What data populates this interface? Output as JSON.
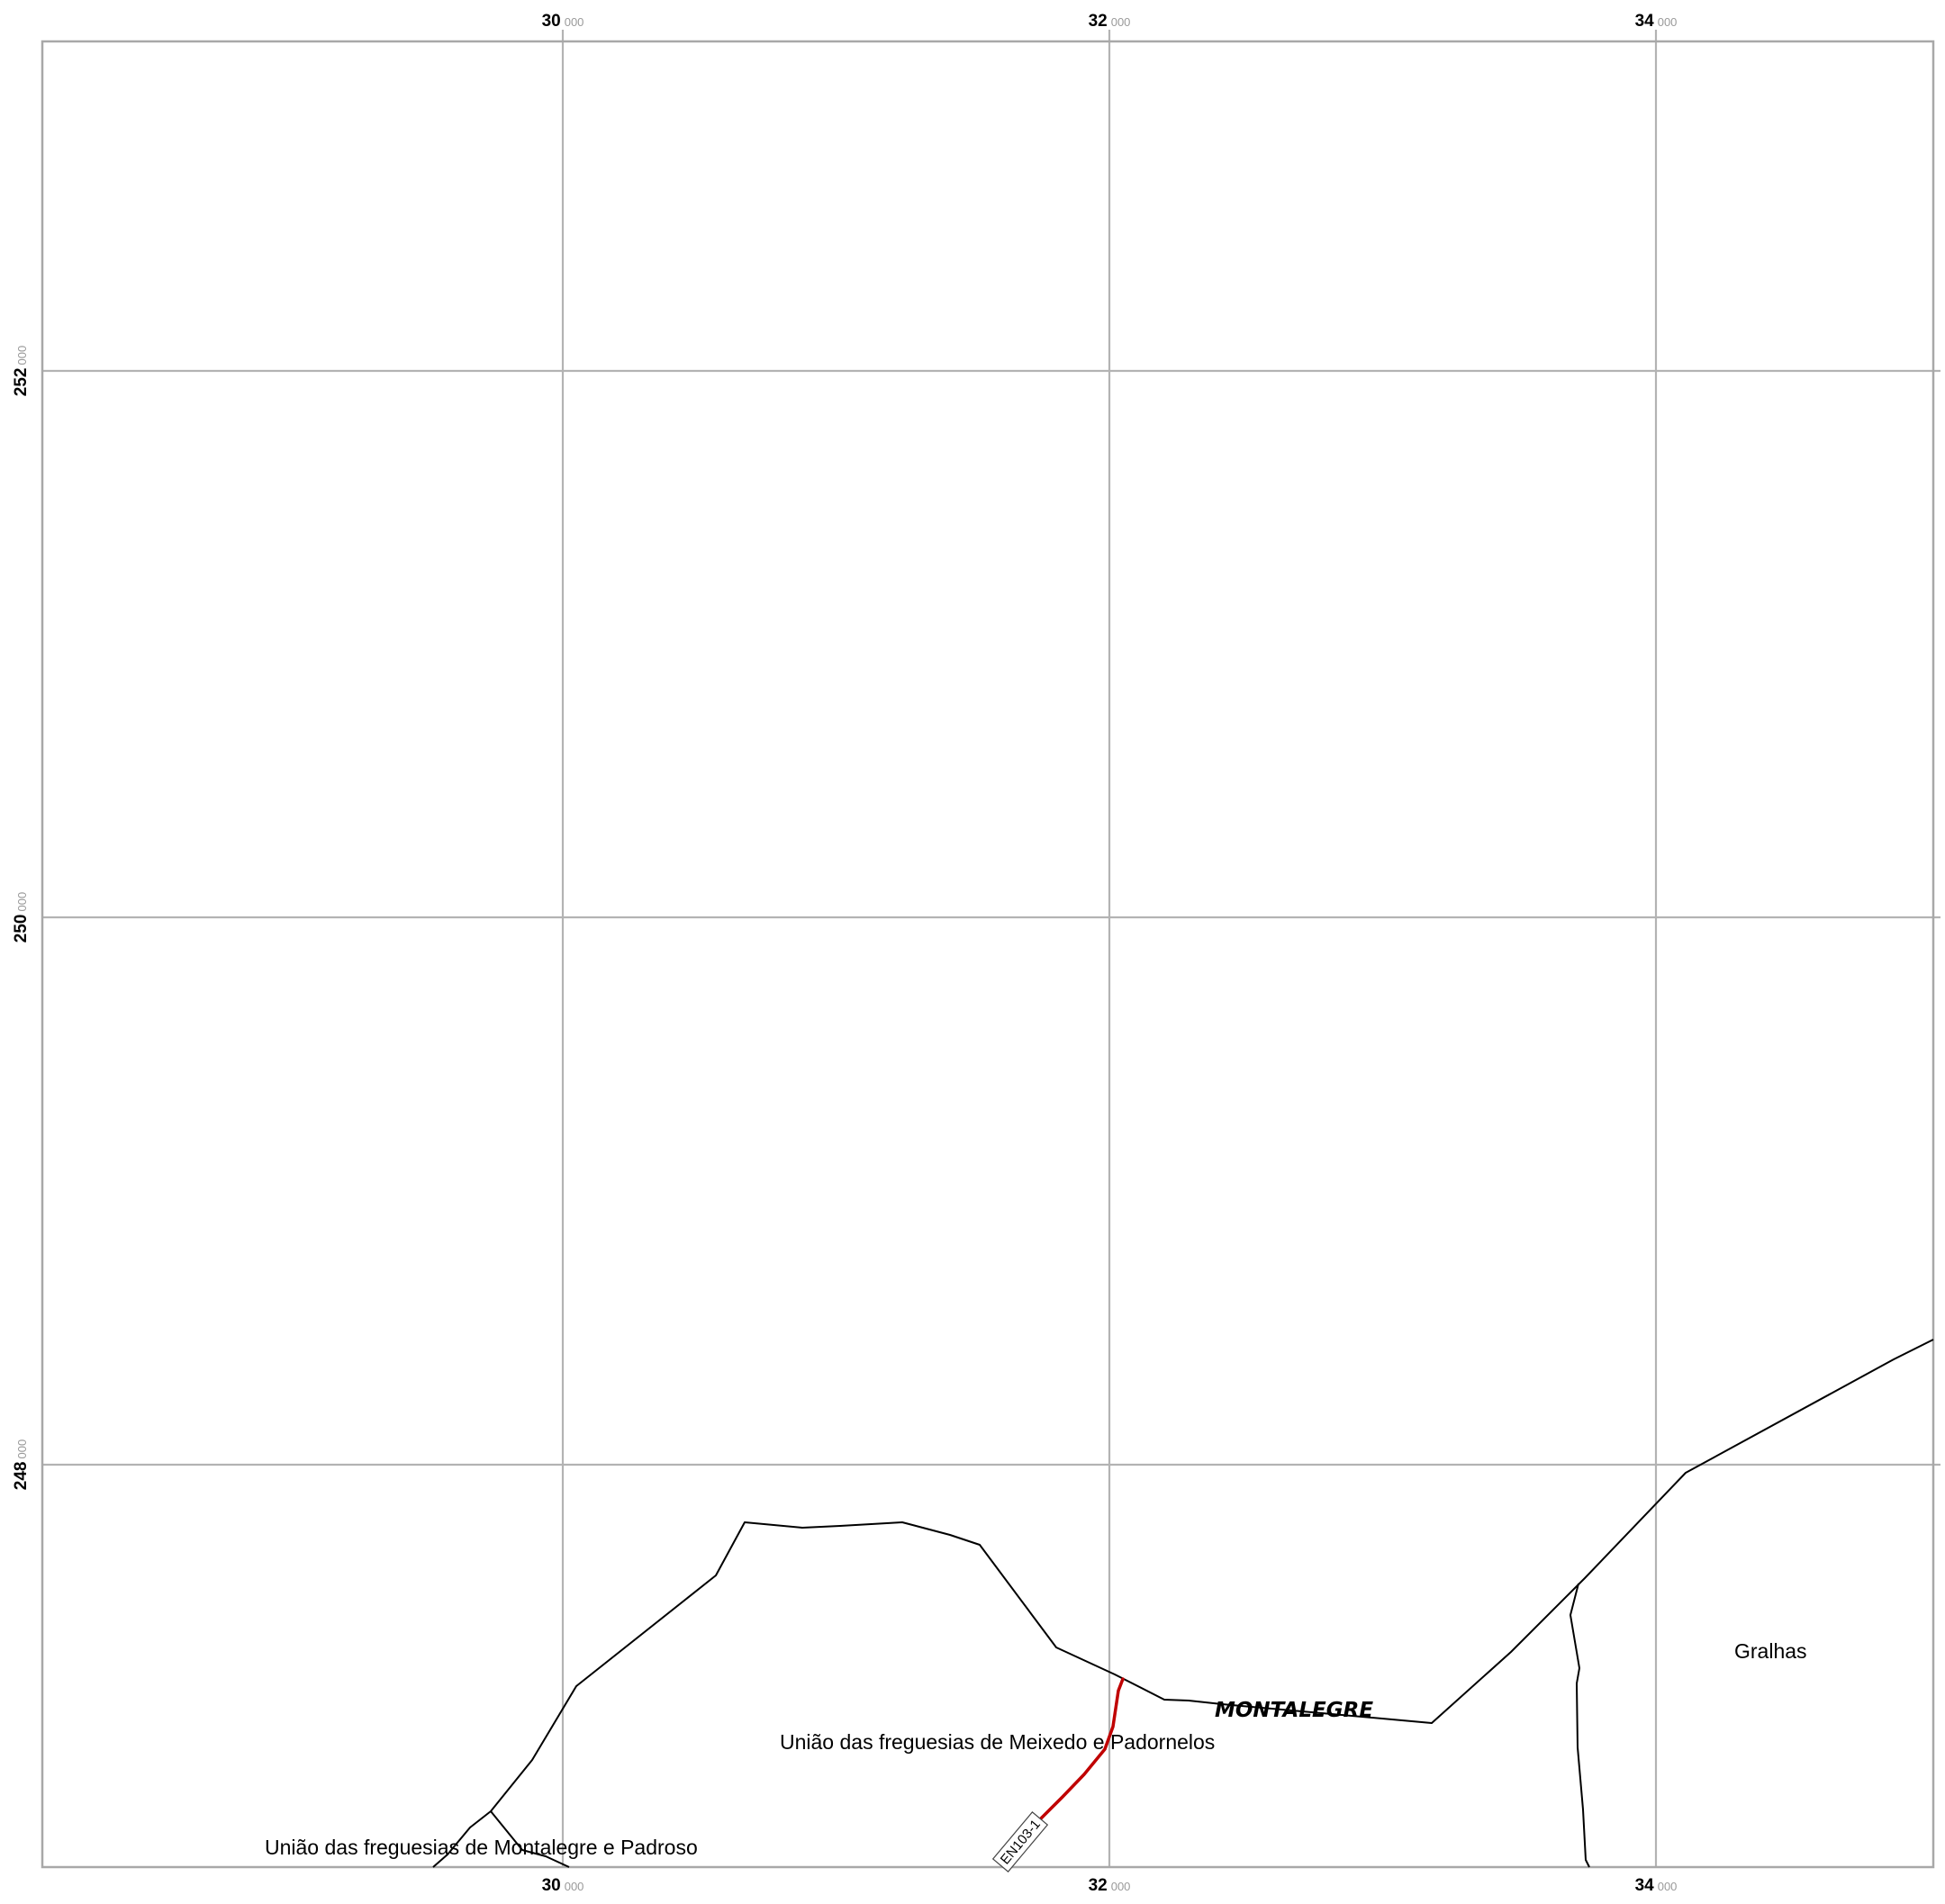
{
  "map": {
    "colors": {
      "background": "#ffffff",
      "grid": "#b3b3b3",
      "frame": "#a8a8a8",
      "boundary": "#000000",
      "road": "#c00000",
      "tick_minor": "#9a9a9a"
    },
    "grid": {
      "x_labels": [
        {
          "major": "30",
          "minor": "000"
        },
        {
          "major": "32",
          "minor": "000"
        },
        {
          "major": "34",
          "minor": "000"
        }
      ],
      "y_labels": [
        {
          "major": "252",
          "minor": "000"
        },
        {
          "major": "250",
          "minor": "000"
        },
        {
          "major": "248",
          "minor": "000"
        }
      ]
    },
    "labels": {
      "place": "MONTALEGRE",
      "meixedo": "União das freguesias de Meixedo e Padornelos",
      "montalegre_padroso": "União das freguesias de Montalegre e Padroso",
      "gralhas": "Gralhas",
      "road_ref": "EN103-1"
    }
  }
}
